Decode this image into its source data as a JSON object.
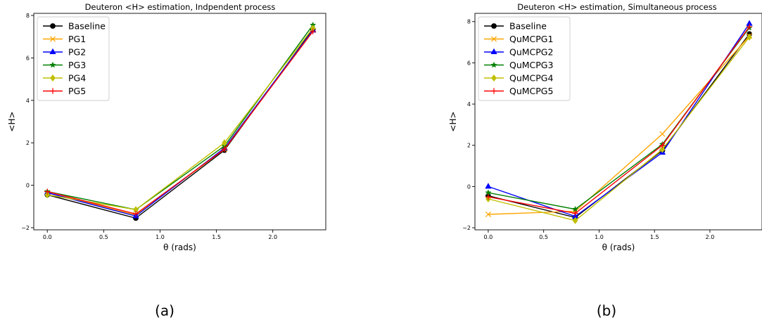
{
  "chart_data": [
    {
      "type": "line",
      "title": "Deuteron <H> estimation, Indpendent process",
      "xlabel": "θ (rads)",
      "ylabel": "<H>",
      "xlim": [
        -0.12,
        2.47
      ],
      "ylim": [
        -2.1,
        8.1
      ],
      "xticks": [
        0.0,
        0.5,
        1.0,
        1.5,
        2.0
      ],
      "xtick_labels": [
        "0.0",
        "0.5",
        "1.0",
        "1.5",
        "2.0"
      ],
      "yticks": [
        -2,
        0,
        2,
        4,
        6,
        8
      ],
      "ytick_labels": [
        "−2",
        "0",
        "2",
        "4",
        "6",
        "8"
      ],
      "grid": false,
      "legend_position": "top-left",
      "x": [
        0.0,
        0.785,
        1.571,
        2.356
      ],
      "series": [
        {
          "name": "Baseline",
          "color": "#000000",
          "marker": "circle",
          "values": [
            -0.45,
            -1.55,
            1.65,
            7.35
          ]
        },
        {
          "name": "PG1",
          "color": "#ffa500",
          "marker": "x",
          "values": [
            -0.35,
            -1.4,
            1.7,
            7.3
          ]
        },
        {
          "name": "PG2",
          "color": "#0000ff",
          "marker": "triangle",
          "values": [
            -0.35,
            -1.45,
            1.75,
            7.3
          ]
        },
        {
          "name": "PG3",
          "color": "#008000",
          "marker": "star",
          "values": [
            -0.3,
            -1.15,
            1.85,
            7.55
          ]
        },
        {
          "name": "PG4",
          "color": "#bfbf00",
          "marker": "diamond",
          "values": [
            -0.45,
            -1.15,
            2.0,
            7.4
          ]
        },
        {
          "name": "PG5",
          "color": "#ff0000",
          "marker": "plus",
          "values": [
            -0.3,
            -1.35,
            1.7,
            7.25
          ]
        }
      ],
      "caption": "(a)"
    },
    {
      "type": "line",
      "title": "Deuteron <H> estimation, Simultaneous process",
      "xlabel": "θ (rads)",
      "ylabel": "<H>",
      "xlim": [
        -0.12,
        2.47
      ],
      "ylim": [
        -2.1,
        8.4
      ],
      "xticks": [
        0.0,
        0.5,
        1.0,
        1.5,
        2.0
      ],
      "xtick_labels": [
        "0.0",
        "0.5",
        "1.0",
        "1.5",
        "2.0"
      ],
      "yticks": [
        -2,
        0,
        2,
        4,
        6,
        8
      ],
      "ytick_labels": [
        "−2",
        "0",
        "2",
        "4",
        "6",
        "8"
      ],
      "grid": false,
      "legend_position": "top-left",
      "x": [
        0.0,
        0.785,
        1.571,
        2.356
      ],
      "series": [
        {
          "name": "Baseline",
          "color": "#000000",
          "marker": "circle",
          "values": [
            -0.45,
            -1.5,
            1.75,
            7.4
          ]
        },
        {
          "name": "QuMCPG1",
          "color": "#ffa500",
          "marker": "x",
          "values": [
            -1.35,
            -1.2,
            2.55,
            7.3
          ]
        },
        {
          "name": "QuMCPG2",
          "color": "#0000ff",
          "marker": "triangle",
          "values": [
            0.0,
            -1.45,
            1.65,
            7.9
          ]
        },
        {
          "name": "QuMCPG3",
          "color": "#008000",
          "marker": "star",
          "values": [
            -0.3,
            -1.1,
            2.05,
            7.7
          ]
        },
        {
          "name": "QuMCPG4",
          "color": "#bfbf00",
          "marker": "diamond",
          "values": [
            -0.6,
            -1.65,
            1.8,
            7.25
          ]
        },
        {
          "name": "QuMCPG5",
          "color": "#ff0000",
          "marker": "plus",
          "values": [
            -0.5,
            -1.3,
            2.0,
            7.75
          ]
        }
      ],
      "caption": "(b)"
    }
  ]
}
